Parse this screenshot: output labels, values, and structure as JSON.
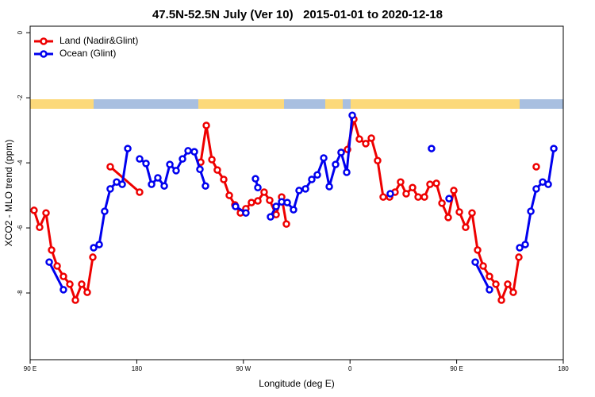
{
  "chart_data": {
    "type": "line",
    "title": "47.5N-52.5N July (Ver 10)   2015-01-01 to 2020-12-18",
    "xlabel": "Longitude (deg E)",
    "ylabel": "XCO2 - MLO trend (ppm)",
    "xlim": [
      90,
      540
    ],
    "xticks": [
      {
        "value": 90,
        "label": "90 E"
      },
      {
        "value": 180,
        "label": "180"
      },
      {
        "value": 270,
        "label": "90 W"
      },
      {
        "value": 360,
        "label": "0"
      },
      {
        "value": 450,
        "label": "90 E"
      },
      {
        "value": 540,
        "label": "180"
      }
    ],
    "ylim": [
      -10.05,
      0.2
    ],
    "yticks": [
      0,
      -2,
      -4,
      -6,
      -8
    ],
    "legend": "top-left",
    "series": [
      {
        "name": "Land (Nadir&Glint)",
        "color": "#ee0000",
        "x": [
          93.3,
          98.0,
          103.4,
          108.1,
          112.8,
          118.1,
          123.5,
          128.2,
          133.5,
          138.2,
          142.9,
          null,
          157.6,
          182.4,
          null,
          234.0,
          238.7,
          243.4,
          248.0,
          253.4,
          258.1,
          262.8,
          267.5,
          272.1,
          276.8,
          282.2,
          287.5,
          292.2,
          297.6,
          302.3,
          306.3,
          null,
          352.5,
          357.9,
          363.2,
          367.9,
          373.3,
          378.0,
          383.3,
          388.0,
          393.4,
          398.0,
          402.7,
          407.4,
          412.8,
          417.5,
          422.8,
          427.5,
          432.9,
          437.6,
          442.9,
          447.6,
          452.3,
          457.6,
          463.0,
          467.7,
          472.4,
          477.7,
          483.1,
          487.8,
          493.1,
          497.8,
          502.5,
          null,
          517.2
        ],
        "values": [
          -5.46,
          -5.98,
          -5.54,
          -6.68,
          -7.17,
          -7.49,
          -7.73,
          -8.22,
          -7.73,
          -7.98,
          -6.9,
          null,
          -4.12,
          -4.9,
          null,
          -3.98,
          -2.85,
          -3.9,
          -4.22,
          -4.51,
          -5.0,
          -5.29,
          -5.54,
          -5.41,
          -5.22,
          -5.17,
          -4.9,
          -5.15,
          -5.59,
          -5.05,
          -5.88,
          null,
          -3.68,
          -3.59,
          -2.66,
          -3.27,
          -3.41,
          -3.24,
          -3.93,
          -5.05,
          -5.05,
          -4.9,
          -4.59,
          -4.95,
          -4.76,
          -5.05,
          -5.05,
          -4.66,
          -4.63,
          -5.24,
          -5.68,
          -4.85,
          -5.51,
          -5.98,
          -5.54,
          -6.68,
          -7.17,
          -7.49,
          -7.73,
          -8.22,
          -7.73,
          -7.98,
          -6.9,
          null,
          -4.12
        ]
      },
      {
        "name": "Ocean (Glint)",
        "color": "#0000ee",
        "x": [
          106.1,
          118.1,
          null,
          143.6,
          148.3,
          152.9,
          157.6,
          163.0,
          167.7,
          172.4,
          null,
          182.4,
          187.8,
          192.5,
          197.8,
          203.2,
          207.9,
          213.2,
          218.6,
          223.3,
          228.6,
          233.3,
          238.0,
          null,
          263.4,
          272.1,
          null,
          280.2,
          282.2,
          null,
          292.9,
          297.6,
          302.3,
          307.0,
          312.3,
          317.0,
          322.4,
          327.7,
          332.4,
          337.8,
          342.5,
          347.8,
          352.5,
          357.2,
          361.9,
          null,
          394.0,
          null,
          428.8,
          null,
          443.6,
          null,
          465.7,
          477.7,
          null,
          503.2,
          507.9,
          512.6,
          517.2,
          522.6,
          527.3,
          532.0
        ],
        "values": [
          -7.05,
          -7.9,
          null,
          -6.61,
          -6.51,
          -5.49,
          -4.8,
          -4.59,
          -4.66,
          -3.56,
          null,
          -3.88,
          -4.02,
          -4.66,
          -4.46,
          -4.71,
          -4.05,
          -4.24,
          -3.88,
          -3.63,
          -3.66,
          -4.2,
          -4.71,
          null,
          -5.34,
          -5.54,
          null,
          -4.49,
          -4.76,
          null,
          -5.66,
          -5.34,
          -5.2,
          -5.22,
          -5.44,
          -4.85,
          -4.8,
          -4.51,
          -4.37,
          -3.85,
          -4.73,
          -4.05,
          -3.68,
          -4.29,
          -2.54,
          null,
          -4.95,
          null,
          -3.56,
          null,
          -5.1,
          null,
          -7.05,
          -7.9,
          null,
          -6.61,
          -6.51,
          -5.49,
          -4.8,
          -4.59,
          -4.66,
          -3.56
        ]
      }
    ]
  }
}
